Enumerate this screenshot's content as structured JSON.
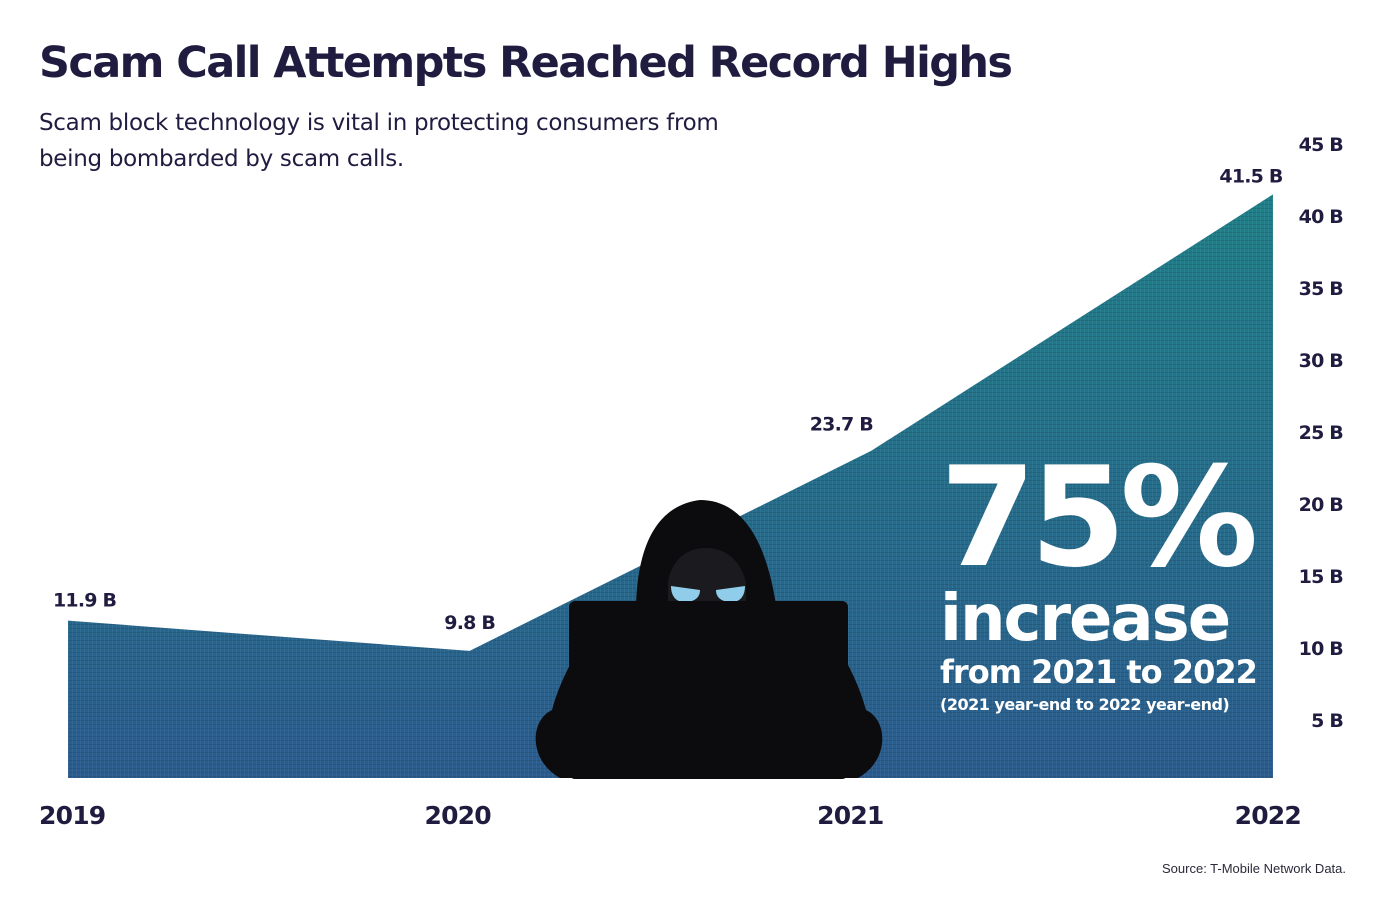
{
  "title": "Scam Call Attempts Reached Record Highs",
  "subtitle": "Scam block technology is vital in protecting consumers from being bombarded by scam calls.",
  "source": "Source: T-Mobile Network Data.",
  "callout": {
    "big": "75%",
    "mid": "increase",
    "small": "from 2021 to 2022",
    "note": "(2021 year-end to 2022 year-end)"
  },
  "colors": {
    "area_top": "#1f7f88",
    "area_bottom": "#2a5c8e",
    "text_dark": "#201c40",
    "figure": "#0c0c0e",
    "eyes": "#8fcdea"
  },
  "illustration": "hooded-hacker-with-laptop",
  "chart_data": {
    "type": "area",
    "x": [
      "2019",
      "2020",
      "2021",
      "2022"
    ],
    "values": [
      11.9,
      9.8,
      23.7,
      41.5
    ],
    "value_labels": [
      "11.9 B",
      "9.8 B",
      "23.7 B",
      "41.5 B"
    ],
    "yticks": [
      5,
      10,
      15,
      20,
      25,
      30,
      35,
      40,
      45
    ],
    "ytick_labels": [
      "5 B",
      "10 B",
      "15 B",
      "20 B",
      "25 B",
      "30 B",
      "35 B",
      "40 B",
      "45 B"
    ],
    "ylim": [
      0,
      45
    ],
    "y_axis_side": "right",
    "grid": false,
    "legend": "none"
  }
}
